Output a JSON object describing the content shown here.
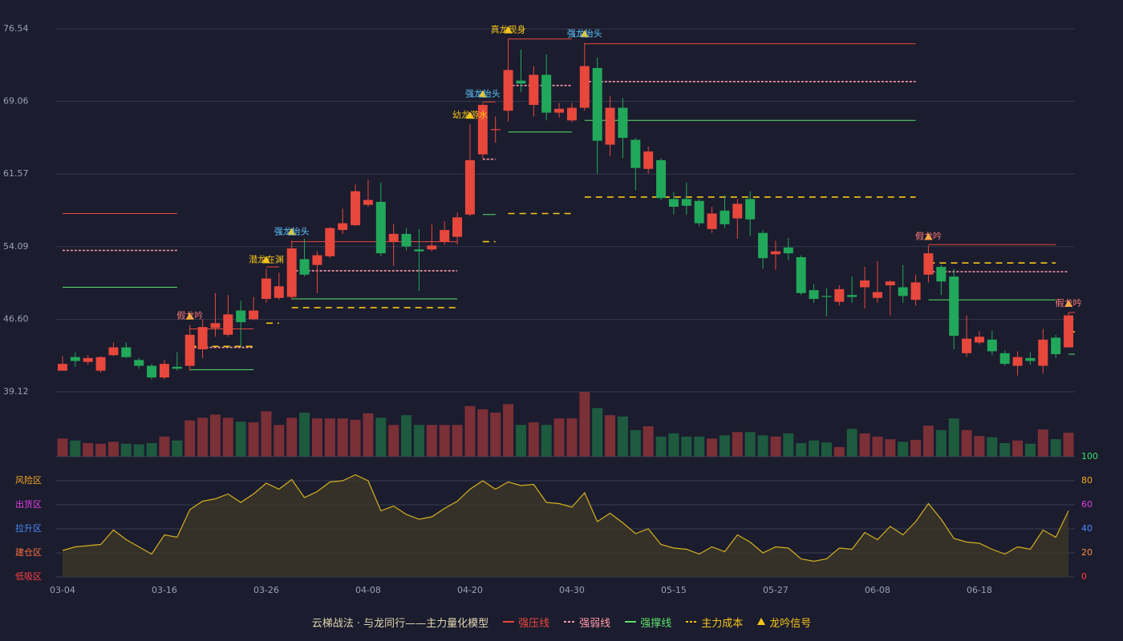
{
  "chart_data": [
    {
      "type": "candlestick",
      "title": "云梯战法 · 与龙同行——主力量化模型",
      "signal_name": "龙吟信号",
      "signal_color": "#f5c518",
      "categories": [
        "03-04",
        null,
        null,
        null,
        null,
        null,
        null,
        null,
        "03-16",
        null,
        null,
        null,
        null,
        null,
        null,
        null,
        "03-26",
        null,
        null,
        null,
        null,
        null,
        null,
        null,
        "04-08",
        null,
        null,
        null,
        null,
        null,
        null,
        null,
        "04-20",
        null,
        null,
        null,
        null,
        null,
        null,
        null,
        "04-30",
        null,
        null,
        null,
        null,
        null,
        null,
        null,
        "05-15",
        null,
        null,
        null,
        null,
        null,
        null,
        null,
        "05-27",
        null,
        null,
        null,
        null,
        null,
        null,
        null,
        "06-08",
        null,
        null,
        null,
        null,
        null,
        null,
        null,
        "06-18",
        null,
        null,
        null,
        null,
        null,
        null,
        null
      ],
      "open": [
        41.3,
        42.7,
        42.2,
        41.3,
        42.9,
        43.7,
        42.4,
        41.8,
        40.6,
        41.7,
        41.8,
        43.5,
        45.7,
        45.0,
        47.5,
        46.6,
        48.7,
        48.8,
        48.9,
        52.8,
        52.2,
        53.1,
        55.8,
        56.3,
        58.4,
        58.7,
        54.6,
        55.4,
        53.8,
        53.8,
        54.6,
        55.1,
        57.4,
        63.6,
        66.1,
        68.1,
        71.2,
        68.7,
        71.8,
        67.9,
        67.1,
        68.4,
        72.5,
        64.6,
        68.4,
        65.1,
        62.1,
        63.0,
        59.0,
        59.0,
        58.8,
        55.9,
        57.8,
        57.0,
        59.0,
        55.5,
        53.3,
        54.0,
        53.0,
        49.6,
        49.0,
        48.4,
        49.1,
        49.9,
        48.8,
        50.1,
        49.9,
        48.6,
        51.2,
        52.0,
        51.0,
        43.1,
        44.2,
        44.5,
        43.1,
        41.8,
        42.6,
        41.8,
        44.7,
        43.7
      ],
      "high": [
        42.8,
        43.2,
        42.9,
        42.8,
        44.2,
        44.2,
        42.6,
        42.0,
        42.4,
        43.2,
        46.0,
        46.6,
        49.3,
        49.1,
        48.5,
        48.9,
        51.8,
        51.4,
        54.7,
        54.9,
        53.6,
        56.1,
        58.0,
        60.5,
        61.0,
        60.7,
        56.4,
        56.0,
        55.9,
        56.4,
        56.7,
        57.6,
        66.7,
        68.9,
        67.5,
        75.5,
        74.4,
        72.7,
        73.9,
        68.9,
        68.9,
        75.1,
        73.6,
        69.6,
        69.4,
        65.3,
        64.4,
        63.2,
        59.7,
        60.7,
        59.0,
        58.2,
        59.4,
        59.0,
        59.8,
        55.8,
        54.7,
        55.0,
        53.2,
        50.2,
        49.8,
        50.1,
        51.0,
        52.0,
        52.6,
        50.6,
        52.2,
        51.2,
        54.2,
        52.2,
        51.8,
        47.0,
        45.4,
        45.4,
        43.4,
        43.3,
        43.2,
        45.6,
        45.0,
        47.3
      ],
      "low": [
        41.3,
        41.7,
        41.9,
        41.1,
        42.8,
        42.6,
        41.5,
        40.4,
        40.4,
        41.3,
        41.3,
        42.6,
        44.8,
        44.8,
        43.8,
        46.5,
        48.3,
        48.6,
        48.6,
        51.0,
        49.3,
        52.9,
        55.4,
        56.2,
        58.2,
        53.1,
        52.1,
        53.7,
        49.5,
        53.6,
        54.3,
        54.3,
        57.2,
        63.2,
        64.8,
        67.0,
        70.0,
        67.5,
        67.1,
        67.4,
        66.9,
        68.1,
        61.6,
        63.4,
        63.2,
        59.9,
        61.6,
        58.9,
        57.4,
        57.4,
        56.2,
        55.5,
        56.0,
        54.9,
        55.2,
        51.8,
        51.7,
        52.7,
        49.1,
        48.3,
        46.9,
        48.0,
        48.3,
        47.7,
        48.3,
        47.0,
        48.3,
        48.0,
        50.4,
        49.1,
        43.5,
        42.7,
        44.0,
        42.9,
        41.8,
        40.8,
        41.9,
        41.0,
        42.6,
        43.7
      ],
      "close": [
        42.0,
        42.3,
        42.6,
        42.7,
        43.7,
        42.7,
        41.8,
        40.6,
        42.0,
        41.5,
        45.0,
        45.8,
        46.2,
        47.1,
        46.3,
        47.5,
        50.8,
        50.0,
        53.9,
        51.2,
        53.2,
        56.0,
        56.5,
        59.8,
        58.9,
        53.4,
        55.4,
        54.1,
        53.6,
        54.2,
        55.8,
        57.1,
        63.0,
        68.7,
        66.2,
        72.3,
        70.9,
        71.8,
        67.9,
        68.3,
        68.4,
        72.7,
        65.0,
        68.4,
        65.3,
        62.2,
        63.9,
        59.1,
        58.2,
        58.3,
        56.5,
        57.5,
        56.4,
        58.5,
        56.9,
        52.9,
        53.6,
        53.4,
        49.3,
        48.7,
        48.9,
        49.7,
        48.9,
        50.6,
        49.4,
        50.5,
        49.0,
        50.4,
        53.4,
        50.5,
        44.9,
        44.6,
        44.8,
        43.3,
        42.0,
        42.7,
        42.3,
        44.5,
        43.0,
        47.0
      ],
      "up_color": "#e8473c",
      "down_color": "#22a85a",
      "ylim": [
        39.12,
        76.54
      ],
      "yticks": [
        39.12,
        {
          "value": 46.6,
          "label": "46.60"
        },
        54.09,
        61.57,
        69.06,
        76.54
      ],
      "grid": true,
      "levels": [
        {
          "name": "强压线",
          "color": "#e8473c",
          "dash": false,
          "segments": [
            {
              "start": 0,
              "end": 9,
              "value": 57.5
            },
            {
              "start": 10,
              "end": 15,
              "value": 45.6
            },
            {
              "start": 16,
              "end": 17,
              "value": 52.0
            },
            {
              "start": 18,
              "end": 31,
              "value": 54.6
            },
            {
              "start": 33,
              "end": 34,
              "value": 69.0
            },
            {
              "start": 35,
              "end": 40,
              "value": 75.5
            },
            {
              "start": 41,
              "end": 67,
              "value": 75.0
            },
            {
              "start": 68,
              "end": 78,
              "value": 54.3
            },
            {
              "start": 79,
              "end": 79,
              "value": 47.3
            }
          ]
        },
        {
          "name": "强弱线",
          "color": "#ff9aa8",
          "dash": true,
          "segments": [
            {
              "start": 0,
              "end": 9,
              "value": 53.7
            },
            {
              "start": 10,
              "end": 15,
              "value": 43.7
            },
            {
              "start": 18,
              "end": 31,
              "value": 51.6
            },
            {
              "start": 33,
              "end": 34,
              "value": 63.1
            },
            {
              "start": 35,
              "end": 40,
              "value": 70.7
            },
            {
              "start": 41,
              "end": 67,
              "value": 71.1
            },
            {
              "start": 68,
              "end": 79,
              "value": 51.5
            }
          ]
        },
        {
          "name": "强撑线",
          "color": "#5be06a",
          "dash": false,
          "segments": [
            {
              "start": 0,
              "end": 9,
              "value": 49.9
            },
            {
              "start": 10,
              "end": 15,
              "value": 41.4
            },
            {
              "start": 18,
              "end": 31,
              "value": 48.7
            },
            {
              "start": 33,
              "end": 34,
              "value": 57.4
            },
            {
              "start": 35,
              "end": 40,
              "value": 65.9
            },
            {
              "start": 41,
              "end": 67,
              "value": 67.1
            },
            {
              "start": 68,
              "end": 78,
              "value": 48.6
            },
            {
              "start": 79,
              "end": 79,
              "value": 43.0
            }
          ]
        },
        {
          "name": "主力成本",
          "color": "#f5c518",
          "dash": true,
          "segments": [
            {
              "start": 10,
              "end": 15,
              "value": 43.8
            },
            {
              "start": 16,
              "end": 17,
              "value": 46.2
            },
            {
              "start": 18,
              "end": 31,
              "value": 47.8
            },
            {
              "start": 33,
              "end": 34,
              "value": 54.6
            },
            {
              "start": 35,
              "end": 40,
              "value": 57.5
            },
            {
              "start": 41,
              "end": 67,
              "value": 59.2
            },
            {
              "start": 68,
              "end": 78,
              "value": 52.4
            },
            {
              "start": 79,
              "end": 79,
              "value": 45.3
            }
          ]
        }
      ],
      "signals": [
        {
          "index": 10,
          "label": "假龙吟",
          "color": "#ff7a7a"
        },
        {
          "index": 16,
          "label": "潜龙在渊",
          "color": "#f5c518"
        },
        {
          "index": 18,
          "label": "强龙抬头",
          "color": "#5fc8ff"
        },
        {
          "index": 32,
          "label": "幼龙游水",
          "color": "#f5c518"
        },
        {
          "index": 33,
          "label": "强龙抬头",
          "color": "#5fc8ff"
        },
        {
          "index": 35,
          "label": "真龙现身",
          "color": "#f5c518"
        },
        {
          "index": 41,
          "label": "强龙抬头",
          "color": "#5fc8ff"
        },
        {
          "index": 68,
          "label": "假龙吟",
          "color": "#ff7a7a"
        },
        {
          "index": 79,
          "label": "假龙吟",
          "color": "#ff7a7a"
        }
      ]
    },
    {
      "type": "bar",
      "up_color": "#7b2f37",
      "down_color": "#1e5a3e",
      "ylim": [
        0,
        100
      ],
      "values": [
        28,
        25,
        21,
        20,
        23,
        20,
        19,
        21,
        31,
        25,
        56,
        60,
        65,
        60,
        54,
        53,
        70,
        49,
        60,
        68,
        59,
        59,
        59,
        57,
        67,
        60,
        49,
        64,
        49,
        49,
        49,
        49,
        78,
        73,
        68,
        81,
        49,
        53,
        49,
        59,
        59,
        100,
        75,
        64,
        62,
        41,
        47,
        31,
        36,
        31,
        31,
        28,
        33,
        38,
        38,
        33,
        31,
        36,
        21,
        25,
        22,
        15,
        43,
        36,
        31,
        27,
        23,
        26,
        48,
        41,
        59,
        41,
        32,
        30,
        21,
        25,
        20,
        42,
        27,
        37
      ]
    },
    {
      "type": "area",
      "color": "#d4b020",
      "fill": "#3a3528",
      "ylim": [
        0,
        100
      ],
      "yticks": [
        0,
        20,
        40,
        60,
        80,
        100
      ],
      "ytick_colors": [
        "#ff4040",
        "#ff8c42",
        "#4a8cff",
        "#e040e0",
        "#f5a623",
        "#3be06a"
      ],
      "zones": [
        {
          "value": 80,
          "label": "风险区",
          "color": "#f5a623"
        },
        {
          "value": 60,
          "label": "出货区",
          "color": "#e040e0"
        },
        {
          "value": 40,
          "label": "拉升区",
          "color": "#4a8cff"
        },
        {
          "value": 20,
          "label": "建仓区",
          "color": "#ff7040"
        },
        {
          "value": 0,
          "label": "低吸区",
          "color": "#ff4040"
        }
      ],
      "values": [
        22,
        25,
        26,
        27,
        39,
        31,
        25,
        19,
        35,
        33,
        56,
        63,
        65,
        69,
        62,
        69,
        78,
        73,
        81,
        66,
        71,
        79,
        80,
        85,
        80,
        55,
        59,
        52,
        48,
        50,
        57,
        63,
        73,
        80,
        73,
        79,
        76,
        77,
        62,
        61,
        58,
        70,
        46,
        53,
        45,
        36,
        40,
        27,
        24,
        23,
        19,
        25,
        21,
        35,
        29,
        20,
        25,
        24,
        15,
        13,
        15,
        24,
        23,
        37,
        31,
        42,
        35,
        46,
        61,
        48,
        32,
        29,
        28,
        23,
        19,
        25,
        23,
        39,
        33,
        55
      ]
    }
  ]
}
